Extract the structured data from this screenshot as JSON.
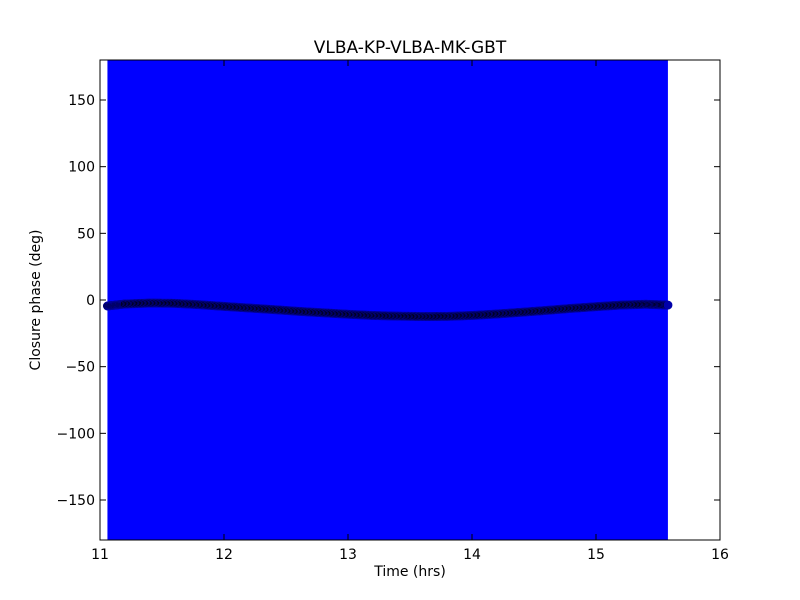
{
  "chart_data": {
    "type": "scatter",
    "title": "VLBA-KP-VLBA-MK-GBT",
    "xlabel": "Time (hrs)",
    "ylabel": "Closure phase (deg)",
    "xlim": [
      11,
      16
    ],
    "ylim": [
      -180,
      180
    ],
    "xticks": [
      11,
      12,
      13,
      14,
      15,
      16
    ],
    "yticks": [
      150,
      100,
      50,
      0,
      -50,
      -100,
      -150
    ],
    "xtick_labels": [
      "11",
      "12",
      "13",
      "14",
      "15",
      "16"
    ],
    "ytick_labels": [
      "150",
      "100",
      "50",
      "0",
      "−50",
      "−100",
      "−150"
    ],
    "grid": false,
    "series": [
      {
        "role": "error-band",
        "color": "#0000ff",
        "x_range": [
          11.06,
          15.58
        ],
        "y_range": [
          -180,
          180
        ]
      },
      {
        "role": "points",
        "color": "#000000",
        "edge_color": "#0000aa",
        "x": [
          11.06,
          11.2,
          11.4,
          11.6,
          11.8,
          12.0,
          12.2,
          12.4,
          12.6,
          12.8,
          13.0,
          13.2,
          13.4,
          13.6,
          13.8,
          14.0,
          14.2,
          14.4,
          14.6,
          14.8,
          15.0,
          15.2,
          15.4,
          15.58
        ],
        "y": [
          -4.5,
          -3.0,
          -2.3,
          -2.5,
          -3.5,
          -4.8,
          -6.0,
          -7.2,
          -8.5,
          -9.6,
          -10.7,
          -11.6,
          -12.1,
          -12.4,
          -12.3,
          -11.6,
          -10.5,
          -9.2,
          -7.8,
          -6.3,
          -5.0,
          -3.8,
          -3.2,
          -3.8
        ]
      }
    ]
  }
}
